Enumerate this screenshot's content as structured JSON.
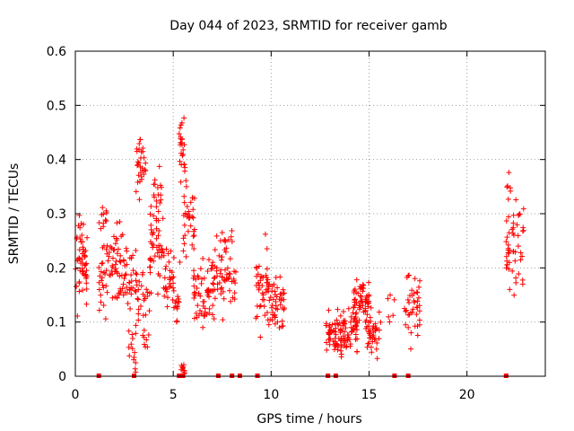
{
  "chart_data": {
    "type": "scatter",
    "title": "Day 044 of 2023, SRMTID for receiver gamb",
    "xlabel": "GPS time / hours",
    "ylabel": "SRMTID / TECUs",
    "xlim": [
      0,
      24
    ],
    "ylim": [
      0,
      0.6
    ],
    "xticks": [
      0,
      5,
      10,
      15,
      20
    ],
    "yticks": [
      0,
      0.1,
      0.2,
      0.3,
      0.4,
      0.5,
      0.6
    ],
    "xtick_labels": [
      "0",
      "5",
      "10",
      "15",
      "20"
    ],
    "ytick_labels": [
      "0",
      "0.1",
      "0.2",
      "0.3",
      "0.4",
      "0.5",
      "0.6"
    ],
    "grid": true,
    "marker": "+",
    "color": "#ff0000",
    "zero_marks_x": [
      1.2,
      3.0,
      5.3,
      5.5,
      7.3,
      8.0,
      8.4,
      9.3,
      12.9,
      13.3,
      16.3,
      17.0,
      22.0
    ],
    "clusters": [
      {
        "start": 0.0,
        "end": 0.6,
        "center": 0.21,
        "spread": 0.06,
        "count": 55
      },
      {
        "start": 1.2,
        "end": 2.0,
        "center": 0.2,
        "spread": 0.06,
        "count": 45
      },
      {
        "start": 1.3,
        "end": 1.6,
        "center": 0.3,
        "spread": 0.015,
        "count": 8
      },
      {
        "start": 2.0,
        "end": 3.1,
        "center": 0.19,
        "spread": 0.06,
        "count": 65
      },
      {
        "start": 2.6,
        "end": 3.1,
        "center": 0.06,
        "spread": 0.035,
        "count": 14
      },
      {
        "start": 3.1,
        "end": 3.6,
        "center": 0.4,
        "spread": 0.05,
        "count": 30
      },
      {
        "start": 3.1,
        "end": 3.8,
        "center": 0.14,
        "spread": 0.05,
        "count": 24
      },
      {
        "start": 3.4,
        "end": 3.8,
        "center": 0.07,
        "spread": 0.02,
        "count": 8
      },
      {
        "start": 3.8,
        "end": 4.5,
        "center": 0.24,
        "spread": 0.06,
        "count": 45
      },
      {
        "start": 4.0,
        "end": 4.4,
        "center": 0.34,
        "spread": 0.03,
        "count": 15
      },
      {
        "start": 4.5,
        "end": 5.4,
        "center": 0.16,
        "spread": 0.05,
        "count": 45
      },
      {
        "start": 5.3,
        "end": 5.6,
        "center": 0.43,
        "spread": 0.05,
        "count": 25
      },
      {
        "start": 5.4,
        "end": 5.6,
        "center": 0.01,
        "spread": 0.008,
        "count": 12
      },
      {
        "start": 5.5,
        "end": 6.1,
        "center": 0.29,
        "spread": 0.05,
        "count": 35
      },
      {
        "start": 6.0,
        "end": 7.2,
        "center": 0.17,
        "spread": 0.05,
        "count": 70
      },
      {
        "start": 7.2,
        "end": 8.2,
        "center": 0.2,
        "spread": 0.06,
        "count": 55
      },
      {
        "start": 9.2,
        "end": 9.9,
        "center": 0.17,
        "spread": 0.06,
        "count": 45
      },
      {
        "start": 9.9,
        "end": 10.7,
        "center": 0.13,
        "spread": 0.04,
        "count": 45
      },
      {
        "start": 12.8,
        "end": 13.6,
        "center": 0.07,
        "spread": 0.03,
        "count": 50
      },
      {
        "start": 13.5,
        "end": 14.4,
        "center": 0.08,
        "spread": 0.03,
        "count": 60
      },
      {
        "start": 14.2,
        "end": 15.0,
        "center": 0.14,
        "spread": 0.025,
        "count": 55
      },
      {
        "start": 14.8,
        "end": 15.6,
        "center": 0.08,
        "spread": 0.03,
        "count": 45
      },
      {
        "start": 15.9,
        "end": 16.3,
        "center": 0.12,
        "spread": 0.02,
        "count": 6
      },
      {
        "start": 16.8,
        "end": 17.6,
        "center": 0.14,
        "spread": 0.05,
        "count": 40
      },
      {
        "start": 22.0,
        "end": 22.9,
        "center": 0.24,
        "spread": 0.06,
        "count": 50
      },
      {
        "start": 22.0,
        "end": 22.3,
        "center": 0.35,
        "spread": 0.02,
        "count": 6
      }
    ]
  }
}
